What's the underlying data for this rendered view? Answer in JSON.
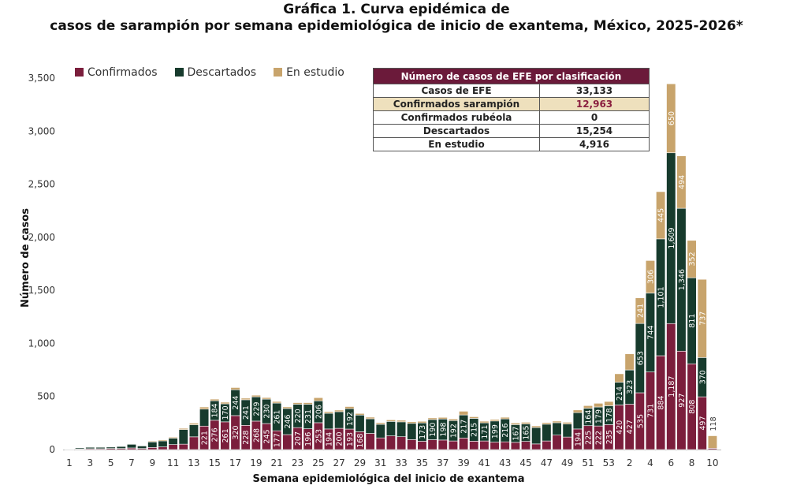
{
  "title_line1": "Gráfica 1. Curva epidémica de",
  "title_line2": "casos de sarampión por semana epidemiológica de inicio de exantema, México, 2025-2026*",
  "colors": {
    "Confirmados": "#7b1e3c",
    "Descartados": "#173b2d",
    "En estudio": "#c8a46c"
  },
  "summary_table": {
    "header": "Número de casos de EFE por clasificación",
    "rows": [
      {
        "label": "Casos de EFE",
        "value": "33,133"
      },
      {
        "label": "Confirmados sarampión",
        "value": "12,963"
      },
      {
        "label": "Confirmados rubéola",
        "value": "0"
      },
      {
        "label": "Descartados",
        "value": "15,254"
      },
      {
        "label": "En estudio",
        "value": "4,916"
      }
    ]
  },
  "chart_data": {
    "type": "bar",
    "stacked": true,
    "xlabel": "Semana epidemiológica del inicio de exantema",
    "ylabel": "Número de casos",
    "ylim": [
      0,
      3500
    ],
    "yticks": [
      0,
      500,
      1000,
      1500,
      2000,
      2500,
      3000,
      3500
    ],
    "ytick_labels": [
      "0",
      "500",
      "1,000",
      "1,500",
      "2,000",
      "2,500",
      "3,000",
      "3,500"
    ],
    "grid": false,
    "legend": "top-left",
    "categories": [
      "1",
      "2",
      "3",
      "4",
      "5",
      "6",
      "7",
      "8",
      "9",
      "10",
      "11",
      "12",
      "13",
      "14",
      "15",
      "16",
      "17",
      "18",
      "19",
      "20",
      "21",
      "22",
      "23",
      "24",
      "25",
      "26",
      "27",
      "28",
      "29",
      "30",
      "31",
      "32",
      "33",
      "34",
      "35",
      "36",
      "37",
      "38",
      "39",
      "40",
      "41",
      "42",
      "43",
      "44",
      "45",
      "46",
      "47",
      "48",
      "49",
      "50",
      "51",
      "52",
      "53",
      "1",
      "2",
      "3",
      "4",
      "5",
      "6",
      "7",
      "8",
      "9",
      "10"
    ],
    "xtick_labels": [
      "1",
      "",
      "3",
      "",
      "5",
      "",
      "7",
      "",
      "9",
      "",
      "11",
      "",
      "13",
      "",
      "15",
      "",
      "17",
      "",
      "19",
      "",
      "21",
      "",
      "23",
      "",
      "25",
      "",
      "27",
      "",
      "29",
      "",
      "31",
      "",
      "33",
      "",
      "35",
      "",
      "37",
      "",
      "39",
      "",
      "41",
      "",
      "43",
      "",
      "45",
      "",
      "47",
      "",
      "49",
      "",
      "51",
      "",
      "53",
      "",
      "2",
      "",
      "4",
      "",
      "6",
      "",
      "8",
      "",
      "10"
    ],
    "series": [
      {
        "name": "Confirmados",
        "values": [
          2,
          5,
          8,
          8,
          10,
          10,
          15,
          10,
          20,
          25,
          47,
          51,
          120,
          221,
          276,
          261,
          320,
          228,
          268,
          245,
          177,
          141,
          207,
          196,
          253,
          194,
          200,
          193,
          168,
          152,
          110,
          129,
          121,
          94,
          78,
          93,
          90,
          81,
          109,
          79,
          81,
          70,
          73,
          68,
          77,
          53,
          81,
          136,
          118,
          194,
          225,
          222,
          235,
          420,
          427,
          535,
          731,
          884,
          1187,
          927,
          808,
          497,
          12
        ]
      },
      {
        "name": "Descartados",
        "values": [
          3,
          10,
          15,
          15,
          15,
          20,
          35,
          25,
          52,
          57,
          60,
          137,
          114,
          160,
          184,
          170,
          244,
          241,
          229,
          230,
          261,
          246,
          220,
          231,
          206,
          148,
          157,
          192,
          157,
          138,
          128,
          136,
          140,
          153,
          173,
          190,
          198,
          192,
          217,
          215,
          171,
          199,
          216,
          167,
          165,
          155,
          158,
          117,
          124,
          154,
          164,
          179,
          178,
          214,
          323,
          653,
          744,
          1101,
          1609,
          1346,
          811,
          370,
          0
        ]
      },
      {
        "name": "En estudio",
        "values": [
          0,
          0,
          2,
          2,
          2,
          3,
          5,
          3,
          8,
          10,
          10,
          12,
          15,
          20,
          15,
          15,
          20,
          15,
          15,
          15,
          15,
          15,
          15,
          15,
          30,
          15,
          15,
          20,
          15,
          15,
          15,
          15,
          15,
          15,
          15,
          15,
          15,
          15,
          35,
          15,
          15,
          15,
          15,
          15,
          15,
          15,
          15,
          15,
          15,
          25,
          25,
          35,
          40,
          80,
          152,
          241,
          306,
          445,
          650,
          494,
          352,
          737,
          118
        ]
      }
    ]
  }
}
